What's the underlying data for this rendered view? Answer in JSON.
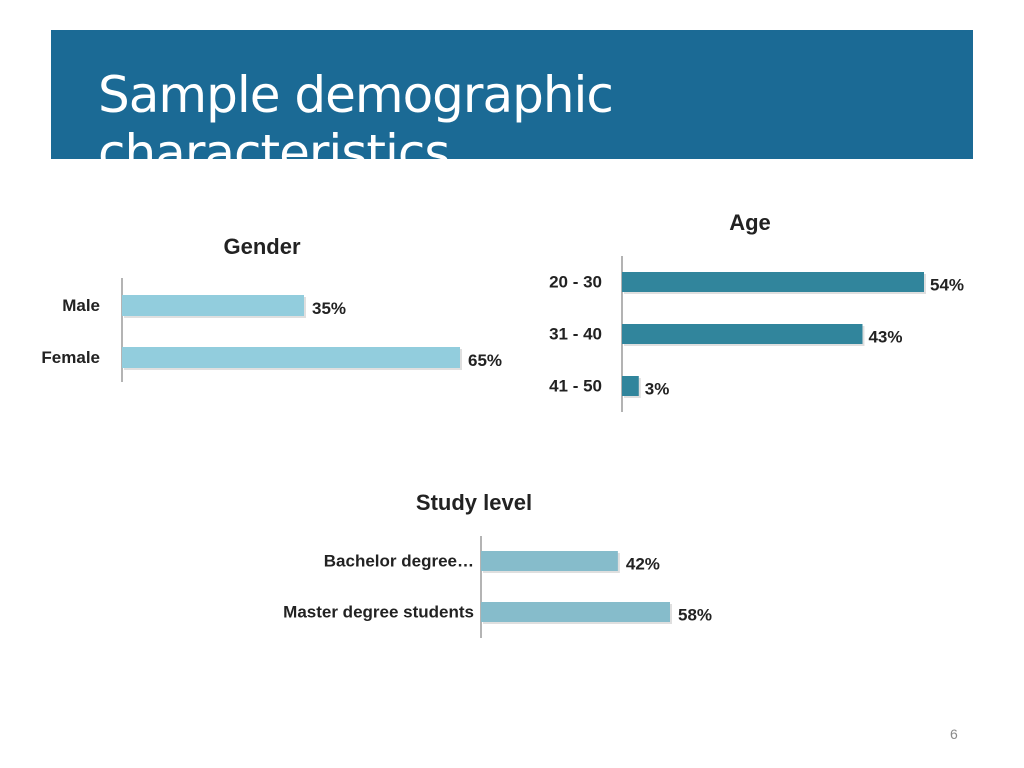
{
  "slide": {
    "title": "Sample demographic characteristics",
    "page_number": "6"
  },
  "colors": {
    "header": "#1b6a95",
    "gender_bar": "#92cddd",
    "age_bar": "#31859c",
    "study_bar": "#86bccb"
  },
  "chart_data": [
    {
      "id": "gender",
      "type": "bar",
      "orientation": "horizontal",
      "title": "Gender",
      "categories": [
        "Male",
        "Female"
      ],
      "values": [
        35,
        65
      ],
      "labels": [
        "35%",
        "65%"
      ],
      "xlim": [
        0,
        65
      ],
      "color": "#92cddd"
    },
    {
      "id": "age",
      "type": "bar",
      "orientation": "horizontal",
      "title": "Age",
      "categories": [
        "20 - 30",
        "31 - 40",
        "41 - 50"
      ],
      "values": [
        54,
        43,
        3
      ],
      "labels": [
        "54%",
        "43%",
        "3%"
      ],
      "xlim": [
        0,
        54
      ],
      "color": "#31859c"
    },
    {
      "id": "study",
      "type": "bar",
      "orientation": "horizontal",
      "title": "Study level",
      "categories": [
        "Bachelor degree…",
        "Master degree students"
      ],
      "values": [
        42,
        58
      ],
      "labels": [
        "42%",
        "58%"
      ],
      "xlim": [
        0,
        58
      ],
      "color": "#86bccb"
    }
  ]
}
